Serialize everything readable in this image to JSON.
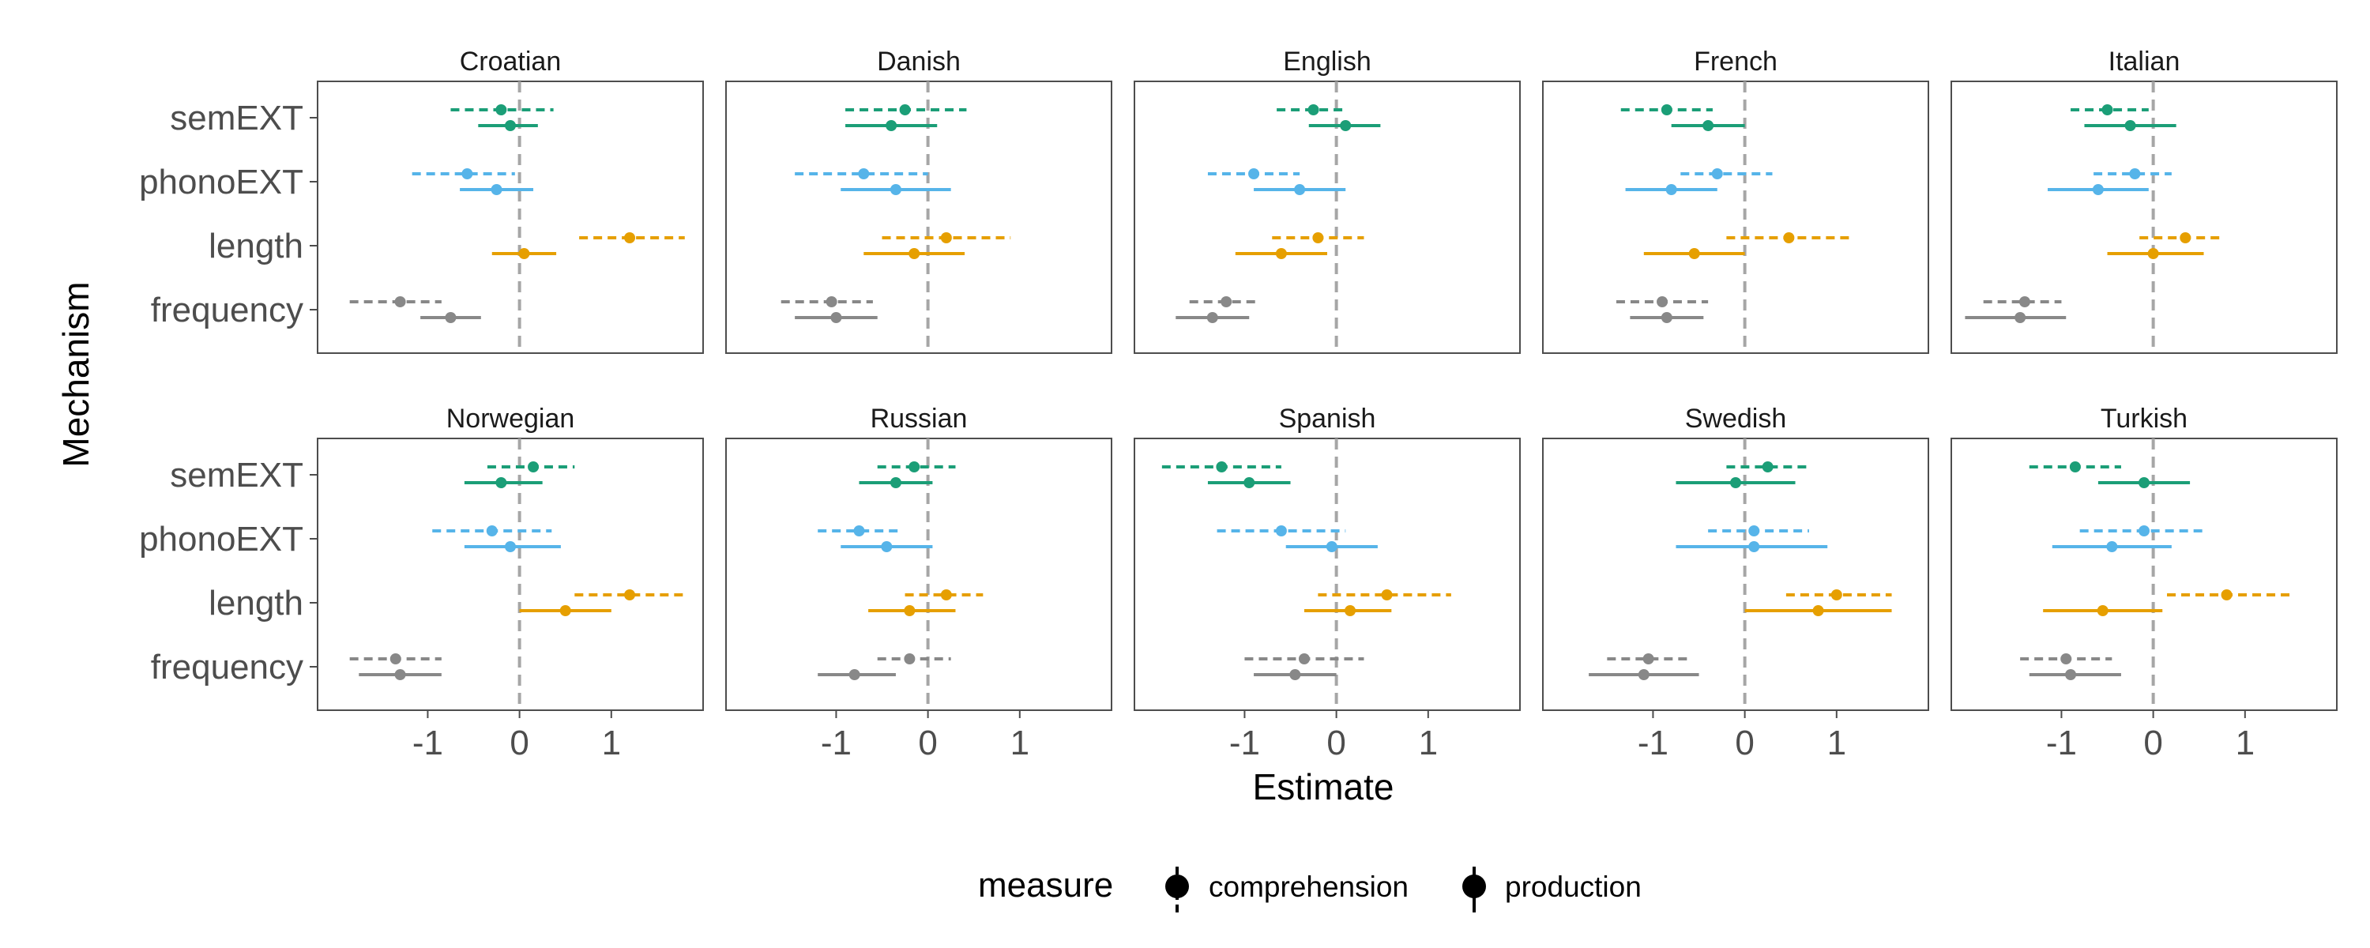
{
  "chart_data": {
    "type": "scatter",
    "xlabel": "Estimate",
    "ylabel": "Mechanism",
    "xlim": [
      -2.2,
      2.0
    ],
    "x_ticks": [
      -1,
      0,
      1
    ],
    "x_tick_labels": [
      "-1",
      "0",
      "1"
    ],
    "reference_line_x": 0,
    "categories": [
      "semEXT",
      "phonoEXT",
      "length",
      "frequency"
    ],
    "category_colors": {
      "semEXT": "#1b9e77",
      "phonoEXT": "#56b4e9",
      "length": "#e69f00",
      "frequency": "#888888"
    },
    "legend": {
      "title": "measure",
      "position": "bottom",
      "entries": [
        {
          "key": "comprehension",
          "label": "comprehension",
          "linetype": "dashed"
        },
        {
          "key": "production",
          "label": "production",
          "linetype": "solid"
        }
      ]
    },
    "panels": [
      {
        "title": "Croatian",
        "data": {
          "semEXT": {
            "comprehension": [
              -0.2,
              -0.75,
              0.37
            ],
            "production": [
              -0.1,
              -0.45,
              0.2
            ]
          },
          "phonoEXT": {
            "comprehension": [
              -0.57,
              -1.17,
              -0.05
            ],
            "production": [
              -0.25,
              -0.65,
              0.15
            ]
          },
          "length": {
            "comprehension": [
              1.2,
              0.65,
              1.8
            ],
            "production": [
              0.05,
              -0.3,
              0.4
            ]
          },
          "frequency": {
            "comprehension": [
              -1.3,
              -1.85,
              -0.85
            ],
            "production": [
              -0.75,
              -1.08,
              -0.42
            ]
          }
        }
      },
      {
        "title": "Danish",
        "data": {
          "semEXT": {
            "comprehension": [
              -0.25,
              -0.9,
              0.42
            ],
            "production": [
              -0.4,
              -0.9,
              0.1
            ]
          },
          "phonoEXT": {
            "comprehension": [
              -0.7,
              -1.45,
              0.0
            ],
            "production": [
              -0.35,
              -0.95,
              0.25
            ]
          },
          "length": {
            "comprehension": [
              0.2,
              -0.5,
              0.9
            ],
            "production": [
              -0.15,
              -0.7,
              0.4
            ]
          },
          "frequency": {
            "comprehension": [
              -1.05,
              -1.6,
              -0.6
            ],
            "production": [
              -1.0,
              -1.45,
              -0.55
            ]
          }
        }
      },
      {
        "title": "English",
        "data": {
          "semEXT": {
            "comprehension": [
              -0.25,
              -0.65,
              0.1
            ],
            "production": [
              0.1,
              -0.3,
              0.48
            ]
          },
          "phonoEXT": {
            "comprehension": [
              -0.9,
              -1.4,
              -0.4
            ],
            "production": [
              -0.4,
              -0.9,
              0.1
            ]
          },
          "length": {
            "comprehension": [
              -0.2,
              -0.7,
              0.3
            ],
            "production": [
              -0.6,
              -1.1,
              -0.1
            ]
          },
          "frequency": {
            "comprehension": [
              -1.2,
              -1.6,
              -0.85
            ],
            "production": [
              -1.35,
              -1.75,
              -0.95
            ]
          }
        }
      },
      {
        "title": "French",
        "data": {
          "semEXT": {
            "comprehension": [
              -0.85,
              -1.35,
              -0.35
            ],
            "production": [
              -0.4,
              -0.8,
              0.0
            ]
          },
          "phonoEXT": {
            "comprehension": [
              -0.3,
              -0.7,
              0.3
            ],
            "production": [
              -0.8,
              -1.3,
              -0.3
            ]
          },
          "length": {
            "comprehension": [
              0.48,
              -0.2,
              1.15
            ],
            "production": [
              -0.55,
              -1.1,
              0.0
            ]
          },
          "frequency": {
            "comprehension": [
              -0.9,
              -1.4,
              -0.4
            ],
            "production": [
              -0.85,
              -1.25,
              -0.45
            ]
          }
        }
      },
      {
        "title": "Italian",
        "data": {
          "semEXT": {
            "comprehension": [
              -0.5,
              -0.9,
              -0.05
            ],
            "production": [
              -0.25,
              -0.75,
              0.25
            ]
          },
          "phonoEXT": {
            "comprehension": [
              -0.2,
              -0.65,
              0.2
            ],
            "production": [
              -0.6,
              -1.15,
              -0.05
            ]
          },
          "length": {
            "comprehension": [
              0.35,
              -0.15,
              0.75
            ],
            "production": [
              0.0,
              -0.5,
              0.55
            ]
          },
          "frequency": {
            "comprehension": [
              -1.4,
              -1.85,
              -1.0
            ],
            "production": [
              -1.45,
              -2.05,
              -0.95
            ]
          }
        }
      },
      {
        "title": "Norwegian",
        "data": {
          "semEXT": {
            "comprehension": [
              0.15,
              -0.35,
              0.6
            ],
            "production": [
              -0.2,
              -0.6,
              0.25
            ]
          },
          "phonoEXT": {
            "comprehension": [
              -0.3,
              -0.95,
              0.35
            ],
            "production": [
              -0.1,
              -0.6,
              0.45
            ]
          },
          "length": {
            "comprehension": [
              1.2,
              0.6,
              1.8
            ],
            "production": [
              0.5,
              0.0,
              1.0
            ]
          },
          "frequency": {
            "comprehension": [
              -1.35,
              -1.85,
              -0.85
            ],
            "production": [
              -1.3,
              -1.75,
              -0.85
            ]
          }
        }
      },
      {
        "title": "Russian",
        "data": {
          "semEXT": {
            "comprehension": [
              -0.15,
              -0.55,
              0.3
            ],
            "production": [
              -0.35,
              -0.75,
              0.05
            ]
          },
          "phonoEXT": {
            "comprehension": [
              -0.75,
              -1.2,
              -0.3
            ],
            "production": [
              -0.45,
              -0.95,
              0.05
            ]
          },
          "length": {
            "comprehension": [
              0.2,
              -0.25,
              0.6
            ],
            "production": [
              -0.2,
              -0.65,
              0.3
            ]
          },
          "frequency": {
            "comprehension": [
              -0.2,
              -0.55,
              0.25
            ],
            "production": [
              -0.8,
              -1.2,
              -0.35
            ]
          }
        }
      },
      {
        "title": "Spanish",
        "data": {
          "semEXT": {
            "comprehension": [
              -1.25,
              -1.9,
              -0.6
            ],
            "production": [
              -0.95,
              -1.4,
              -0.5
            ]
          },
          "phonoEXT": {
            "comprehension": [
              -0.6,
              -1.3,
              0.1
            ],
            "production": [
              -0.05,
              -0.55,
              0.45
            ]
          },
          "length": {
            "comprehension": [
              0.55,
              -0.2,
              1.25
            ],
            "production": [
              0.15,
              -0.35,
              0.6
            ]
          },
          "frequency": {
            "comprehension": [
              -0.35,
              -1.0,
              0.3
            ],
            "production": [
              -0.45,
              -0.9,
              0.0
            ]
          }
        }
      },
      {
        "title": "Swedish",
        "data": {
          "semEXT": {
            "comprehension": [
              0.25,
              -0.2,
              0.7
            ],
            "production": [
              -0.1,
              -0.75,
              0.55
            ]
          },
          "phonoEXT": {
            "comprehension": [
              0.1,
              -0.4,
              0.7
            ],
            "production": [
              0.1,
              -0.75,
              0.9
            ]
          },
          "length": {
            "comprehension": [
              1.0,
              0.45,
              1.6
            ],
            "production": [
              0.8,
              0.0,
              1.6
            ]
          },
          "frequency": {
            "comprehension": [
              -1.05,
              -1.5,
              -0.6
            ],
            "production": [
              -1.1,
              -1.7,
              -0.5
            ]
          }
        }
      },
      {
        "title": "Turkish",
        "data": {
          "semEXT": {
            "comprehension": [
              -0.85,
              -1.35,
              -0.35
            ],
            "production": [
              -0.1,
              -0.6,
              0.4
            ]
          },
          "phonoEXT": {
            "comprehension": [
              -0.1,
              -0.8,
              0.55
            ],
            "production": [
              -0.45,
              -1.1,
              0.2
            ]
          },
          "length": {
            "comprehension": [
              0.8,
              0.15,
              1.5
            ],
            "production": [
              -0.55,
              -1.2,
              0.1
            ]
          },
          "frequency": {
            "comprehension": [
              -0.95,
              -1.45,
              -0.45
            ],
            "production": [
              -0.9,
              -1.35,
              -0.35
            ]
          }
        }
      }
    ]
  }
}
